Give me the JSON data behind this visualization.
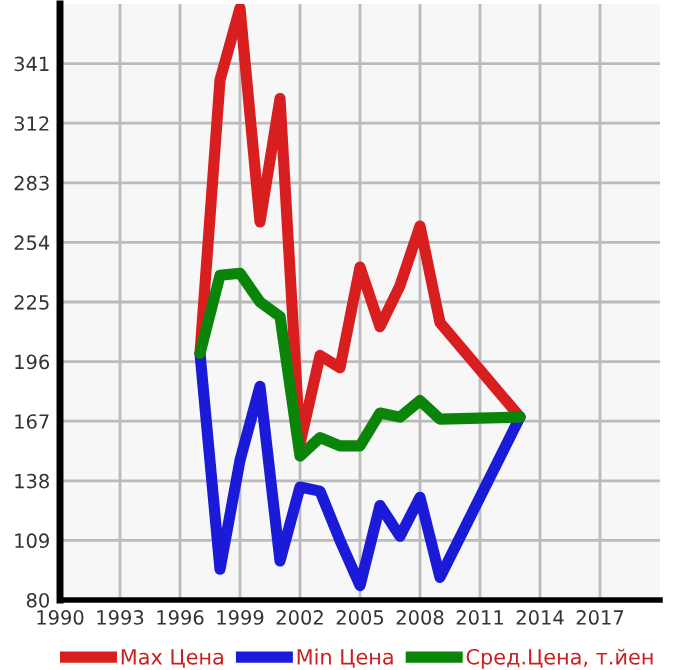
{
  "chart_data": {
    "type": "line",
    "x": [
      1997,
      1998,
      1999,
      2000,
      2001,
      2002,
      2003,
      2004,
      2005,
      2006,
      2007,
      2008,
      2009,
      2013
    ],
    "series": [
      {
        "name": "Max Цена",
        "color": "#d81e1e",
        "values": [
          200,
          333,
          368,
          264,
          324,
          156,
          199,
          193,
          242,
          213,
          233,
          262,
          215,
          169
        ]
      },
      {
        "name": "Min Цена",
        "color": "#1a1ad8",
        "values": [
          200,
          95,
          148,
          184,
          99,
          135,
          133,
          109,
          87,
          126,
          111,
          130,
          91,
          169
        ]
      },
      {
        "name": "Сред.Цена, т.йен",
        "color": "#0a850a",
        "values": [
          200,
          238,
          239,
          225,
          218,
          150,
          159,
          155,
          155,
          171,
          169,
          177,
          168,
          169
        ]
      }
    ],
    "xlim": [
      1990,
      2020
    ],
    "xticks": [
      1990,
      1993,
      1996,
      1999,
      2002,
      2005,
      2008,
      2011,
      2014,
      2017
    ],
    "ylim": [
      80,
      370
    ],
    "yticks": [
      80,
      109,
      138,
      167,
      196,
      225,
      254,
      283,
      312,
      341
    ],
    "grid": true,
    "legend": "bottom",
    "marker": "none",
    "line_style": "solid"
  }
}
